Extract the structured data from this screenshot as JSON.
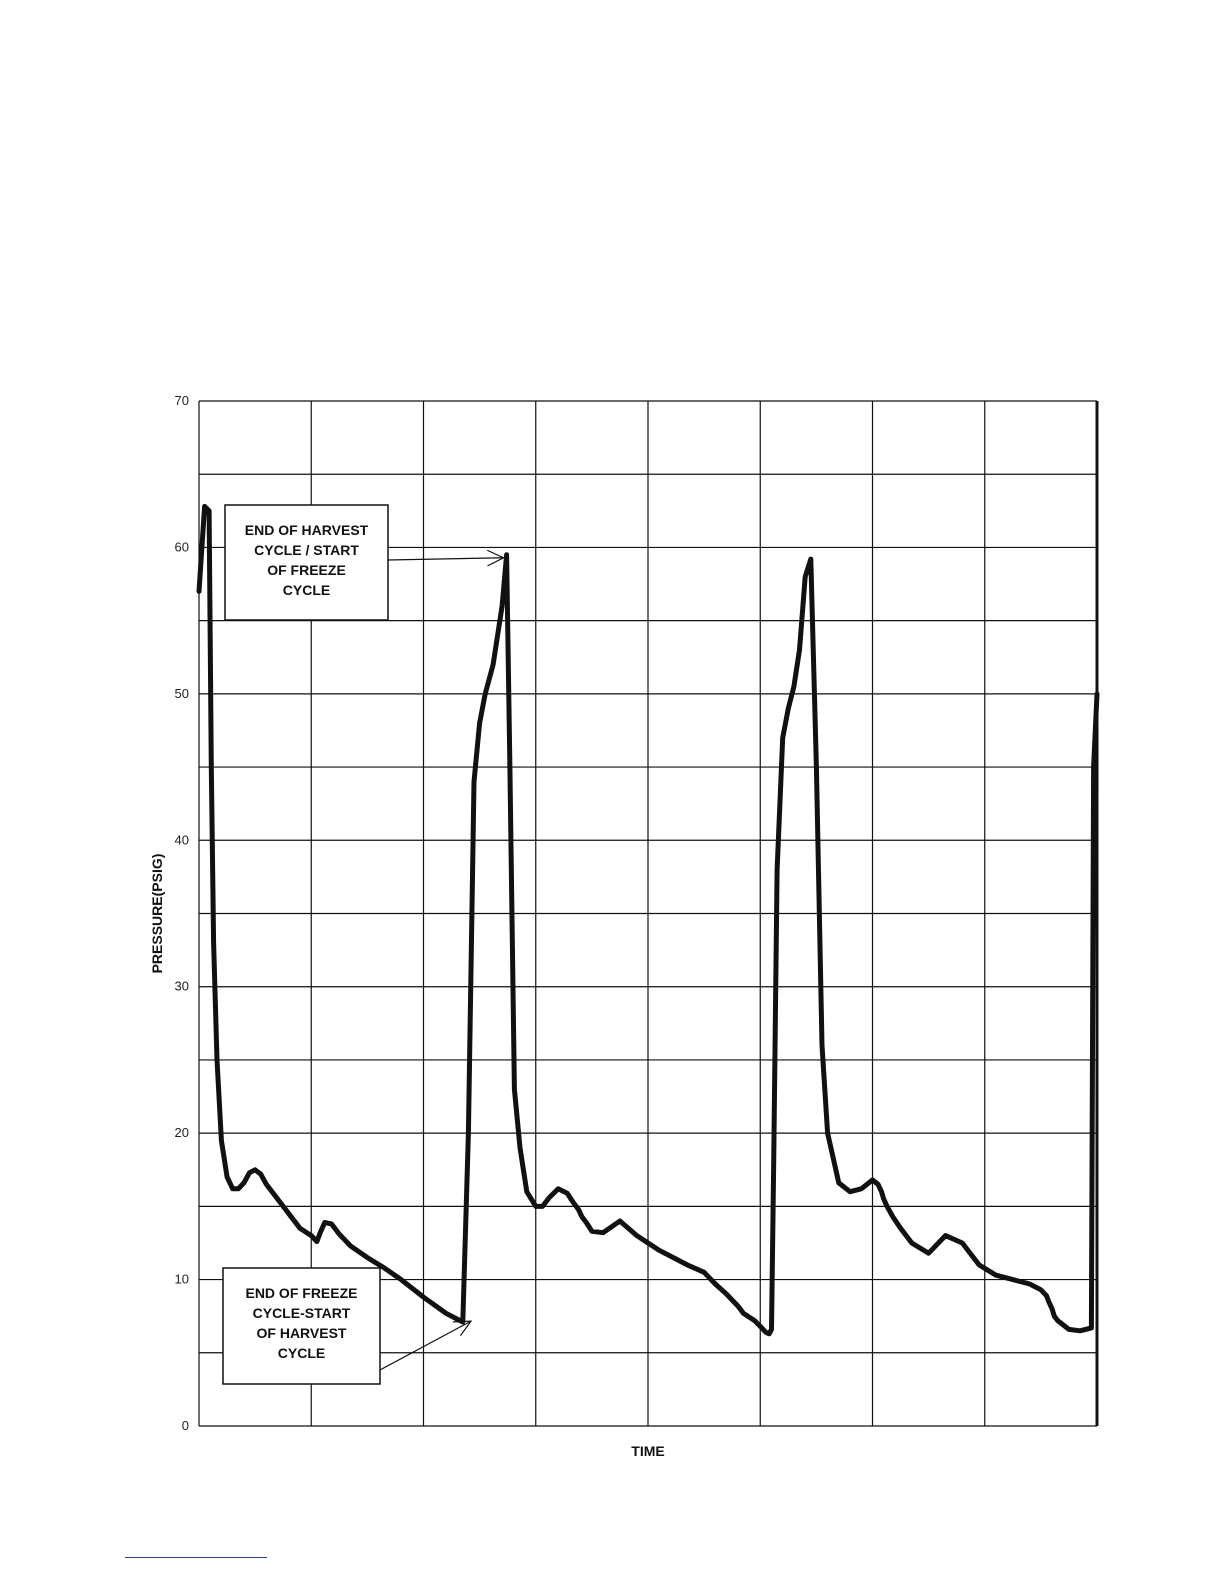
{
  "chart_data": {
    "type": "line",
    "title": "",
    "xlabel": "TIME",
    "ylabel": "PRESSURE(PSIG)",
    "ylim": [
      0,
      70
    ],
    "xlim": [
      0,
      8
    ],
    "yticks": [
      0,
      10,
      20,
      30,
      40,
      50,
      60,
      70
    ],
    "grid": true,
    "series": [
      {
        "x": [
          0.0,
          0.05,
          0.09,
          0.11,
          0.13,
          0.16,
          0.2,
          0.25,
          0.3,
          0.35,
          0.4,
          0.45,
          0.5,
          0.55,
          0.6,
          0.7,
          0.8,
          0.9,
          1.0,
          1.05,
          1.08,
          1.12,
          1.18,
          1.25,
          1.35,
          1.5,
          1.65,
          1.8,
          2.0,
          2.2,
          2.35,
          2.4,
          2.45,
          2.5,
          2.55,
          2.62,
          2.7,
          2.74,
          2.77,
          2.81,
          2.86,
          2.92,
          3.0,
          3.06,
          3.12,
          3.2,
          3.28,
          3.34,
          3.38,
          3.41,
          3.45,
          3.5,
          3.6,
          3.75,
          3.9,
          4.0,
          4.1,
          4.2,
          4.35,
          4.5,
          4.6,
          4.7,
          4.75,
          4.8,
          4.85,
          4.95,
          5.0,
          5.05,
          5.08,
          5.1,
          5.12,
          5.15,
          5.2,
          5.25,
          5.3,
          5.35,
          5.4,
          5.45,
          5.5,
          5.55,
          5.6,
          5.7,
          5.8,
          5.9,
          6.0,
          6.05,
          6.08,
          6.1,
          6.13,
          6.18,
          6.25,
          6.35,
          6.5,
          6.65,
          6.8,
          6.95,
          7.1,
          7.25,
          7.4,
          7.5,
          7.55,
          7.57,
          7.6,
          7.62,
          7.65,
          7.7,
          7.75,
          7.85,
          7.95,
          7.97,
          8.0
        ],
        "y": [
          57.0,
          62.8,
          62.5,
          45.0,
          33.0,
          25.0,
          19.5,
          17.0,
          16.2,
          16.2,
          16.6,
          17.3,
          17.5,
          17.2,
          16.5,
          15.5,
          14.5,
          13.5,
          13.0,
          12.6,
          13.2,
          13.9,
          13.8,
          13.1,
          12.3,
          11.5,
          10.8,
          10.0,
          8.8,
          7.7,
          7.1,
          20.0,
          44.0,
          48.0,
          50.0,
          52.0,
          56.0,
          59.5,
          45.0,
          23.0,
          19.0,
          16.0,
          15.0,
          15.0,
          15.6,
          16.2,
          15.9,
          15.2,
          14.8,
          14.3,
          13.9,
          13.3,
          13.2,
          14.0,
          13.0,
          12.5,
          12.0,
          11.6,
          11.0,
          10.5,
          9.7,
          9.0,
          8.6,
          8.2,
          7.7,
          7.2,
          6.8,
          6.4,
          6.3,
          6.6,
          18.0,
          38.0,
          47.0,
          49.0,
          50.5,
          53.0,
          58.0,
          59.2,
          45.0,
          26.0,
          20.0,
          16.6,
          16.0,
          16.2,
          16.8,
          16.5,
          16.0,
          15.5,
          15.0,
          14.3,
          13.5,
          12.5,
          11.8,
          13.0,
          12.5,
          11.0,
          10.3,
          10.0,
          9.7,
          9.3,
          8.9,
          8.5,
          8.0,
          7.5,
          7.2,
          6.9,
          6.6,
          6.5,
          6.7,
          45.0,
          50.0
        ]
      }
    ],
    "annotations": [
      {
        "lines": [
          "END OF HARVEST",
          "CYCLE / START",
          "OF FREEZE",
          "CYCLE"
        ],
        "points_to": {
          "x": 2.74,
          "y": 59.5
        }
      },
      {
        "lines": [
          "END OF FREEZE",
          "CYCLE-START",
          "OF HARVEST",
          "CYCLE"
        ],
        "points_to": {
          "x": 2.45,
          "y": 7.3
        }
      }
    ]
  }
}
